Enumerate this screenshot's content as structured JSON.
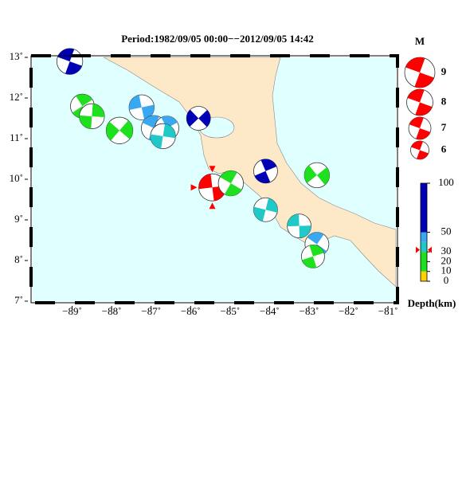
{
  "title": "Period:1982/09/05 00:00−−2012/09/05 14:42",
  "map": {
    "xlim": [
      -90,
      -80.8
    ],
    "ylim": [
      7,
      13
    ],
    "xticks": [
      {
        "value": -89,
        "label": "−89˚"
      },
      {
        "value": -88,
        "label": "−88˚"
      },
      {
        "value": -87,
        "label": "−87˚"
      },
      {
        "value": -86,
        "label": "−86˚"
      },
      {
        "value": -85,
        "label": "−85˚"
      },
      {
        "value": -84,
        "label": "−84˚"
      },
      {
        "value": -83,
        "label": "−83˚"
      },
      {
        "value": -82,
        "label": "−82˚"
      },
      {
        "value": -81,
        "label": "−81˚"
      }
    ],
    "yticks": [
      {
        "value": 7,
        "label": "7˚"
      },
      {
        "value": 8,
        "label": "8˚"
      },
      {
        "value": 9,
        "label": "9˚"
      },
      {
        "value": 10,
        "label": "10˚"
      },
      {
        "value": 11,
        "label": "11˚"
      },
      {
        "value": 12,
        "label": "12˚"
      },
      {
        "value": 13,
        "label": "13˚"
      }
    ],
    "land_color": "#fde8c8",
    "sea_color": "#e0ffff",
    "highlight_color": "#ff0000",
    "events": [
      {
        "lon": -89.06,
        "lat": 12.9,
        "depth": 80,
        "mag": 7.9
      },
      {
        "lon": -88.74,
        "lat": 11.8,
        "depth": 25,
        "mag": 7.4
      },
      {
        "lon": -88.5,
        "lat": 11.55,
        "depth": 25,
        "mag": 7.7
      },
      {
        "lon": -87.8,
        "lat": 11.2,
        "depth": 25,
        "mag": 8.1
      },
      {
        "lon": -87.24,
        "lat": 11.77,
        "depth": 45,
        "mag": 7.7
      },
      {
        "lon": -86.93,
        "lat": 11.26,
        "depth": 45,
        "mag": 7.7
      },
      {
        "lon": -86.6,
        "lat": 11.26,
        "depth": 45,
        "mag": 7.4
      },
      {
        "lon": -86.7,
        "lat": 11.06,
        "depth": 35,
        "mag": 7.7
      },
      {
        "lon": -85.8,
        "lat": 11.5,
        "depth": 80,
        "mag": 7.4
      },
      {
        "lon": -85.45,
        "lat": 9.8,
        "depth": 32,
        "mag": 8.2,
        "highlight": true
      },
      {
        "lon": -84.98,
        "lat": 9.9,
        "depth": 25,
        "mag": 7.7
      },
      {
        "lon": -84.1,
        "lat": 10.2,
        "depth": 80,
        "mag": 7.4
      },
      {
        "lon": -84.1,
        "lat": 9.25,
        "depth": 35,
        "mag": 7.4
      },
      {
        "lon": -82.8,
        "lat": 10.1,
        "depth": 25,
        "mag": 7.7
      },
      {
        "lon": -83.25,
        "lat": 8.85,
        "depth": 35,
        "mag": 7.4
      },
      {
        "lon": -82.8,
        "lat": 8.4,
        "depth": 45,
        "mag": 7.4
      },
      {
        "lon": -82.9,
        "lat": 8.1,
        "depth": 25,
        "mag": 7.2
      }
    ]
  },
  "magnitude_legend": {
    "title": "M",
    "values": [
      9,
      8,
      7,
      6
    ],
    "color": "#ff0000"
  },
  "depth_scale": {
    "title": "Depth(km)",
    "lim": [
      0,
      100
    ],
    "ticks": [
      0,
      10,
      20,
      30,
      50,
      100
    ],
    "bands": [
      {
        "to": 10,
        "color": "#ffd000"
      },
      {
        "to": 30,
        "color": "#1ee01e"
      },
      {
        "to": 40,
        "color": "#20c8c8"
      },
      {
        "to": 50,
        "color": "#3aa8f0"
      },
      {
        "to": 100,
        "color": "#0000b4"
      }
    ]
  }
}
